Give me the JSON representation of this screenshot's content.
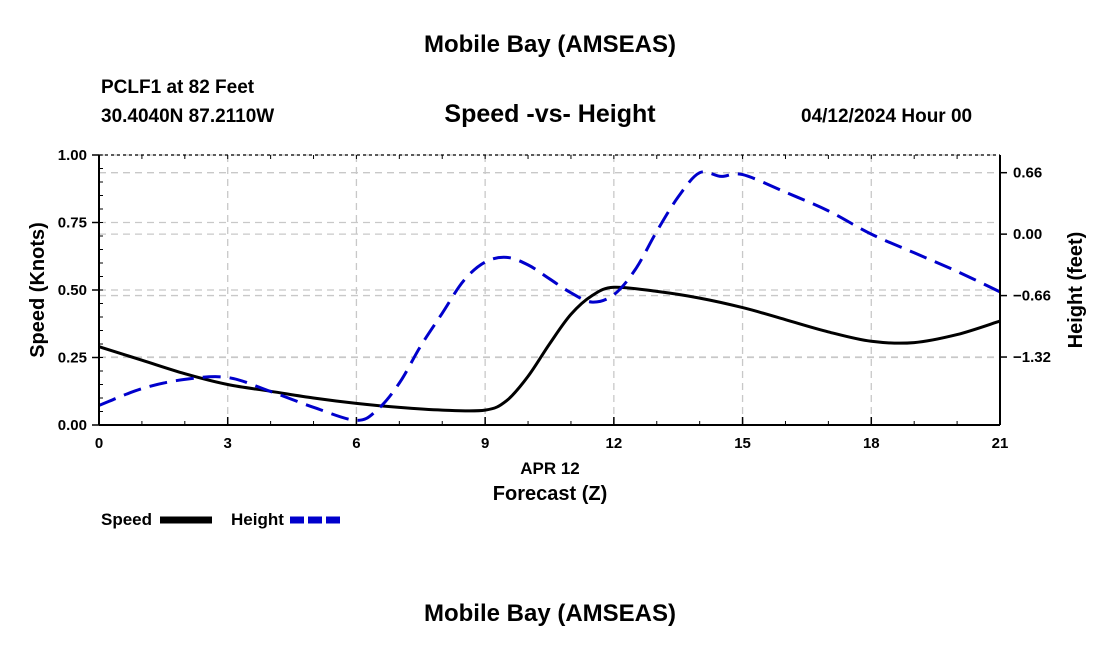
{
  "header": {
    "title": "Mobile Bay (AMSEAS)",
    "station": "PCLF1 at 82 Feet",
    "coords": "30.4040N  87.2110W",
    "subtitle": "Speed -vs- Height",
    "datetime": "04/12/2024 Hour 00"
  },
  "footer": {
    "title": "Mobile Bay (AMSEAS)"
  },
  "chart_data": {
    "type": "line",
    "title": "Speed -vs- Height",
    "xlabel": "Forecast (Z)",
    "xlabel_date": "APR 12",
    "ylabel_left": "Speed (Knots)",
    "ylabel_right": "Height (feet)",
    "xlim": [
      0,
      21
    ],
    "ylim_left": [
      0,
      1.0
    ],
    "ylim_right": [
      -2.05,
      0.85
    ],
    "x_ticks": [
      0,
      3,
      6,
      9,
      12,
      15,
      18,
      21
    ],
    "x_tick_labels": [
      "0",
      "3",
      "6",
      "9",
      "12",
      "15",
      "18",
      "21"
    ],
    "y_left_ticks": [
      0,
      0.25,
      0.5,
      0.75,
      1.0
    ],
    "y_left_tick_labels": [
      "0.00",
      "0.25",
      "0.50",
      "0.75",
      "1.00"
    ],
    "y_right_ticks": [
      -1.32,
      -0.66,
      0.0,
      0.66
    ],
    "y_right_tick_labels": [
      "−1.32",
      "−0.66",
      "0.00",
      "0.66"
    ],
    "grid": true,
    "series": [
      {
        "name": "Speed",
        "axis": "left",
        "color": "#000000",
        "style": "solid",
        "x": [
          0,
          1,
          2,
          3,
          4,
          5,
          6,
          7,
          8,
          9,
          9.5,
          10,
          10.5,
          11,
          11.5,
          12,
          13,
          14,
          15,
          16,
          17,
          18,
          19,
          20,
          21
        ],
        "y": [
          0.29,
          0.24,
          0.19,
          0.15,
          0.125,
          0.1,
          0.08,
          0.065,
          0.055,
          0.055,
          0.09,
          0.18,
          0.3,
          0.41,
          0.48,
          0.51,
          0.495,
          0.47,
          0.435,
          0.39,
          0.345,
          0.31,
          0.305,
          0.335,
          0.385
        ]
      },
      {
        "name": "Height",
        "axis": "right",
        "color": "#0000cc",
        "style": "dashed",
        "x": [
          0,
          1,
          2,
          3,
          4,
          5,
          6,
          6.5,
          7,
          7.5,
          8,
          8.5,
          9,
          9.5,
          10,
          10.5,
          11,
          11.5,
          12,
          12.5,
          13,
          13.5,
          14,
          14.5,
          15,
          16,
          17,
          18,
          19,
          20,
          21
        ],
        "y": [
          -1.84,
          -1.66,
          -1.56,
          -1.54,
          -1.69,
          -1.86,
          -2.0,
          -1.88,
          -1.6,
          -1.2,
          -0.85,
          -0.5,
          -0.3,
          -0.25,
          -0.33,
          -0.48,
          -0.63,
          -0.73,
          -0.65,
          -0.38,
          0.03,
          0.4,
          0.66,
          0.62,
          0.64,
          0.45,
          0.25,
          0.0,
          -0.2,
          -0.4,
          -0.62
        ]
      }
    ],
    "legend": [
      {
        "label": "Speed",
        "color": "#000000",
        "style": "solid"
      },
      {
        "label": "Height",
        "color": "#0000cc",
        "style": "dashed"
      }
    ]
  }
}
